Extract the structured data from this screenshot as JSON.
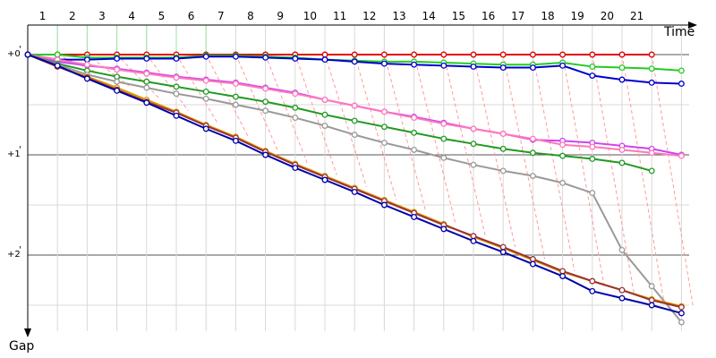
{
  "chart_data": {
    "type": "line",
    "xlabel": "Time",
    "ylabel": "Gap",
    "x_ticks": [
      "1",
      "2",
      "3",
      "4",
      "5",
      "6",
      "7",
      "8",
      "9",
      "10",
      "11",
      "12",
      "13",
      "14",
      "15",
      "16",
      "17",
      "18",
      "19",
      "20",
      "21"
    ],
    "y_ticks": [
      {
        "label": "+0",
        "sup": "'",
        "value": 0
      },
      {
        "label": "+1",
        "sup": "'",
        "value": 1
      },
      {
        "label": "+2",
        "sup": "'",
        "value": 2
      }
    ],
    "xlim": [
      0,
      22.2
    ],
    "ylim": [
      -0.25,
      2.9
    ],
    "grid": true,
    "series": [
      {
        "color": "#e00000",
        "x": [
          0,
          1,
          2,
          3,
          4,
          5,
          6,
          7,
          8,
          9,
          10,
          11,
          12,
          13,
          14,
          15,
          16,
          17,
          18,
          19,
          20,
          21
        ],
        "y": [
          0,
          0,
          0,
          0,
          0,
          0,
          0,
          0,
          0,
          0,
          0,
          0,
          0,
          0,
          0,
          0,
          0,
          0,
          0,
          0,
          0,
          0
        ]
      },
      {
        "color": "#22cc22",
        "x": [
          0,
          1,
          2,
          3,
          4,
          5,
          6,
          7,
          8,
          9,
          10,
          11,
          12,
          13,
          14,
          15,
          16,
          17,
          18,
          19,
          20,
          21,
          22
        ],
        "y": [
          0,
          0,
          0.03,
          0.03,
          0.03,
          0.03,
          0.01,
          0.01,
          0.02,
          0.03,
          0.05,
          0.06,
          0.07,
          0.07,
          0.08,
          0.09,
          0.1,
          0.1,
          0.08,
          0.12,
          0.13,
          0.14,
          0.16
        ]
      },
      {
        "color": "#0000cc",
        "x": [
          0,
          1,
          2,
          3,
          4,
          5,
          6,
          7,
          8,
          9,
          10,
          11,
          12,
          13,
          14,
          15,
          16,
          17,
          18,
          19,
          20,
          21,
          22
        ],
        "y": [
          0,
          0.05,
          0.05,
          0.04,
          0.04,
          0.04,
          0.02,
          0.02,
          0.03,
          0.04,
          0.05,
          0.07,
          0.09,
          0.1,
          0.11,
          0.12,
          0.13,
          0.13,
          0.11,
          0.21,
          0.25,
          0.28,
          0.29
        ]
      },
      {
        "color": "#cc44ee",
        "x": [
          0,
          1,
          2,
          3,
          4,
          5,
          6,
          7,
          8,
          9,
          10,
          11,
          12,
          13,
          14,
          15,
          16,
          17,
          18,
          19,
          20,
          21,
          22
        ],
        "y": [
          0,
          0.07,
          0.11,
          0.14,
          0.18,
          0.22,
          0.25,
          0.28,
          0.33,
          0.38,
          0.45,
          0.51,
          0.57,
          0.62,
          0.68,
          0.74,
          0.79,
          0.85,
          0.86,
          0.88,
          0.91,
          0.94,
          1.0
        ]
      },
      {
        "color": "#ff77bb",
        "x": [
          0,
          1,
          2,
          3,
          4,
          5,
          6,
          7,
          8,
          9,
          10,
          11,
          12,
          13,
          14,
          15,
          16,
          17,
          18,
          19,
          20,
          21,
          22
        ],
        "y": [
          0,
          0.05,
          0.1,
          0.15,
          0.19,
          0.23,
          0.26,
          0.29,
          0.34,
          0.39,
          0.45,
          0.51,
          0.57,
          0.63,
          0.69,
          0.74,
          0.79,
          0.84,
          0.9,
          0.92,
          0.95,
          0.98,
          1.01
        ]
      },
      {
        "color": "#229922",
        "x": [
          0,
          1,
          2,
          3,
          4,
          5,
          6,
          7,
          8,
          9,
          10,
          11,
          12,
          13,
          14,
          15,
          16,
          17,
          18,
          19,
          20,
          21
        ],
        "y": [
          0,
          0.09,
          0.16,
          0.22,
          0.27,
          0.32,
          0.37,
          0.42,
          0.47,
          0.53,
          0.6,
          0.66,
          0.72,
          0.78,
          0.84,
          0.89,
          0.94,
          0.98,
          1.01,
          1.04,
          1.08,
          1.16
        ]
      },
      {
        "color": "#999999",
        "x": [
          0,
          1,
          2,
          3,
          4,
          5,
          6,
          7,
          8,
          9,
          10,
          11,
          12,
          13,
          14,
          15,
          16,
          17,
          18,
          19,
          20,
          21,
          22
        ],
        "y": [
          0,
          0.1,
          0.2,
          0.27,
          0.33,
          0.39,
          0.44,
          0.5,
          0.56,
          0.63,
          0.71,
          0.8,
          0.88,
          0.95,
          1.03,
          1.1,
          1.16,
          1.21,
          1.28,
          1.38,
          1.95,
          2.31,
          2.67
        ]
      },
      {
        "color": "#dd9900",
        "x": [
          0,
          1,
          2,
          3,
          4,
          5,
          6,
          7,
          8,
          9,
          10,
          11,
          12,
          13,
          14,
          15,
          16,
          17,
          18,
          19,
          20,
          21,
          22
        ],
        "y": [
          0,
          0.12,
          0.22,
          0.33,
          0.45,
          0.57,
          0.7,
          0.82,
          0.96,
          1.09,
          1.21,
          1.33,
          1.45,
          1.57,
          1.69,
          1.82,
          1.93,
          2.05,
          2.17,
          2.26,
          2.35,
          2.44,
          2.51
        ]
      },
      {
        "color": "#993333",
        "x": [
          0,
          1,
          2,
          3,
          4,
          5,
          6,
          7,
          8,
          9,
          10,
          11,
          12,
          13,
          14,
          15,
          16,
          17,
          18,
          19,
          20,
          21,
          22
        ],
        "y": [
          0,
          0.12,
          0.23,
          0.35,
          0.47,
          0.58,
          0.71,
          0.83,
          0.97,
          1.1,
          1.22,
          1.34,
          1.46,
          1.58,
          1.7,
          1.81,
          1.92,
          2.04,
          2.16,
          2.26,
          2.35,
          2.45,
          2.52
        ]
      },
      {
        "color": "#0000aa",
        "x": [
          0,
          1,
          2,
          3,
          4,
          5,
          6,
          7,
          8,
          9,
          10,
          11,
          12,
          13,
          14,
          15,
          16,
          17,
          18,
          19,
          20,
          21,
          22
        ],
        "y": [
          0,
          0.11,
          0.24,
          0.36,
          0.48,
          0.61,
          0.74,
          0.86,
          1.0,
          1.13,
          1.25,
          1.37,
          1.5,
          1.62,
          1.74,
          1.86,
          1.97,
          2.09,
          2.21,
          2.36,
          2.43,
          2.5,
          2.58
        ]
      }
    ]
  }
}
